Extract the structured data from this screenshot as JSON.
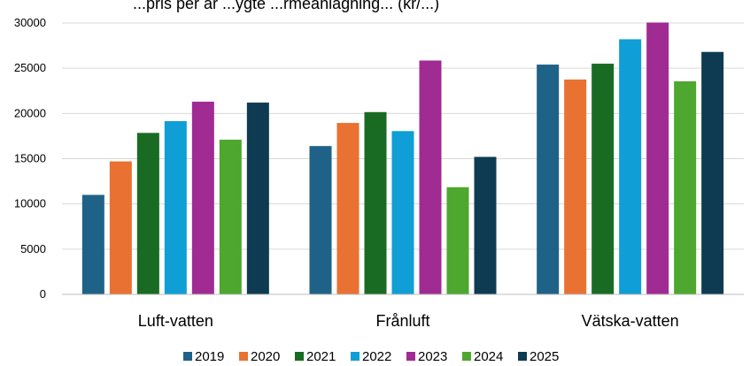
{
  "chart_data": {
    "type": "bar",
    "title": "...pris per år ...ygte ...rmeanlägning... (kr/...)",
    "categories": [
      "Luft-vatten",
      "Frånluft",
      "Vätska-vatten"
    ],
    "ylim": [
      0,
      30000
    ],
    "yticks": [
      0,
      5000,
      10000,
      15000,
      20000,
      25000,
      30000
    ],
    "grid": true,
    "legend_position": "bottom",
    "series": [
      {
        "name": "2019",
        "color": "#1f6287",
        "values": [
          11000,
          16400,
          25400
        ]
      },
      {
        "name": "2020",
        "color": "#e97132",
        "values": [
          14700,
          18950,
          23750
        ]
      },
      {
        "name": "2021",
        "color": "#196b24",
        "values": [
          17850,
          20150,
          25500
        ]
      },
      {
        "name": "2022",
        "color": "#0f9ed5",
        "values": [
          19150,
          18050,
          28200
        ]
      },
      {
        "name": "2023",
        "color": "#a02b93",
        "values": [
          21300,
          25850,
          30050
        ]
      },
      {
        "name": "2024",
        "color": "#4ea72e",
        "values": [
          17100,
          11850,
          23550
        ]
      },
      {
        "name": "2025",
        "color": "#0e3b52",
        "values": [
          21200,
          15200,
          26800
        ]
      }
    ]
  }
}
